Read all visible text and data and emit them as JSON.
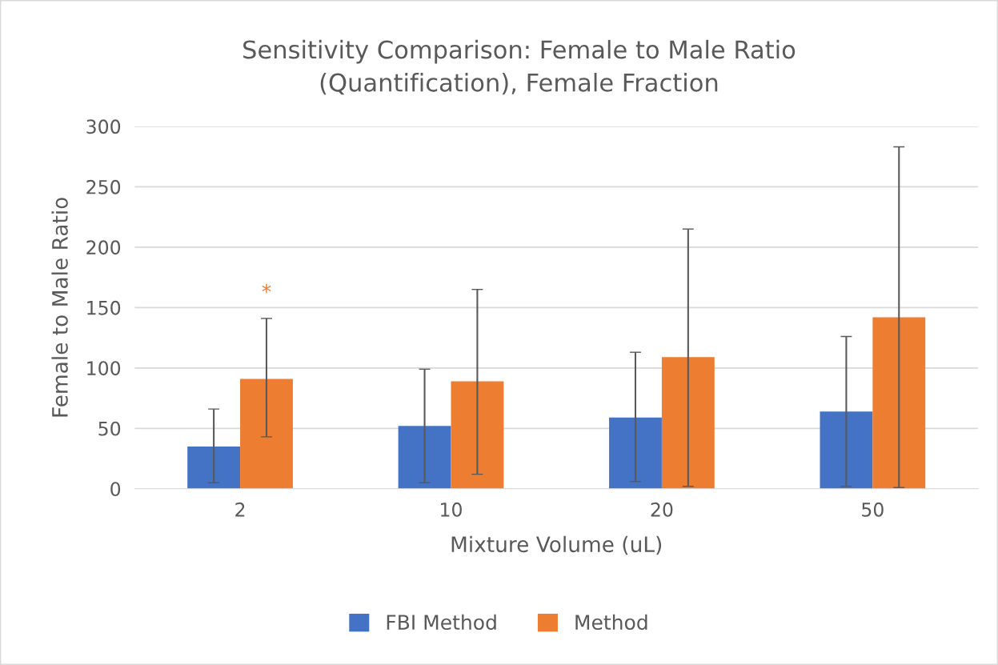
{
  "chart_data": {
    "type": "bar",
    "title": "Sensitivity Comparison: Female to Male Ratio\n(Quantification), Female Fraction",
    "xlabel": "Mixture Volume (uL)",
    "ylabel": "Female to Male Ratio",
    "categories": [
      "2",
      "10",
      "20",
      "50"
    ],
    "series": [
      {
        "name": "FBI Method",
        "color": "#4472c4",
        "values": [
          35,
          52,
          59,
          64
        ],
        "errors": [
          [
            5,
            66
          ],
          [
            5,
            99
          ],
          [
            6,
            113
          ],
          [
            2,
            126
          ]
        ]
      },
      {
        "name": "Method",
        "color": "#ed7d31",
        "values": [
          91,
          89,
          109,
          142
        ],
        "errors": [
          [
            43,
            141
          ],
          [
            12,
            165
          ],
          [
            2,
            215
          ],
          [
            1,
            283
          ]
        ]
      }
    ],
    "annotations": [
      "*"
    ],
    "ylim": [
      0,
      300
    ],
    "yticks": [
      0,
      50,
      100,
      150,
      200,
      250,
      300
    ],
    "grid": "y",
    "legend": "bottom"
  }
}
